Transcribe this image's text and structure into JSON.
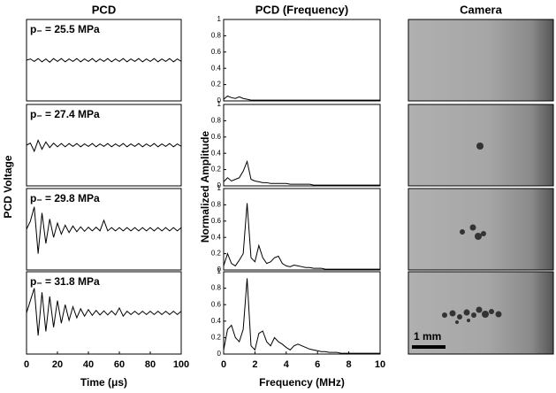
{
  "chart_data": [
    {
      "type": "line",
      "title": "PCD",
      "y_label": "PCD Voltage",
      "label": "p₋ = 25.5 MPa",
      "color": "#000000",
      "x": [
        0,
        2.5,
        5,
        7.5,
        10,
        12.5,
        15,
        17.5,
        20,
        22.5,
        25,
        27.5,
        30,
        32.5,
        35,
        37.5,
        40,
        42.5,
        45,
        47.5,
        50,
        52.5,
        55,
        57.5,
        60,
        62.5,
        65,
        67.5,
        70,
        72.5,
        75,
        77.5,
        80,
        82.5,
        85,
        87.5,
        90,
        92.5,
        95,
        97.5,
        100
      ],
      "values": [
        0,
        0.03,
        -0.03,
        0.04,
        -0.04,
        0.03,
        -0.05,
        0.04,
        -0.03,
        0.04,
        -0.04,
        0.03,
        -0.03,
        0.04,
        -0.04,
        0.03,
        -0.03,
        0.04,
        -0.04,
        0.03,
        -0.03,
        0.04,
        -0.04,
        0.03,
        -0.03,
        0.04,
        -0.04,
        0.03,
        -0.03,
        0.04,
        -0.04,
        0.03,
        -0.03,
        0.04,
        -0.04,
        0.03,
        -0.03,
        0.04,
        -0.04,
        0.03,
        -0.03
      ],
      "xlim": [
        0,
        100
      ],
      "ylim": [
        -1,
        1
      ]
    },
    {
      "type": "line",
      "label": "p₋ = 27.4 MPa",
      "color": "#000000",
      "x": [
        0,
        2.5,
        5,
        7.5,
        10,
        12.5,
        15,
        17.5,
        20,
        22.5,
        25,
        27.5,
        30,
        32.5,
        35,
        37.5,
        40,
        42.5,
        45,
        47.5,
        50,
        52.5,
        55,
        57.5,
        60,
        62.5,
        65,
        67.5,
        70,
        72.5,
        75,
        77.5,
        80,
        82.5,
        85,
        87.5,
        90,
        92.5,
        95,
        97.5,
        100
      ],
      "values": [
        0,
        0.05,
        -0.15,
        0.12,
        -0.1,
        0.08,
        -0.06,
        0.05,
        -0.04,
        0.04,
        -0.04,
        0.04,
        -0.03,
        0.04,
        -0.04,
        0.03,
        -0.03,
        0.04,
        -0.04,
        0.03,
        -0.03,
        0.04,
        -0.04,
        0.03,
        -0.03,
        0.04,
        -0.04,
        0.03,
        -0.03,
        0.04,
        -0.04,
        0.03,
        -0.03,
        0.04,
        -0.04,
        0.03,
        -0.03,
        0.04,
        -0.04,
        0.03,
        -0.03
      ],
      "xlim": [
        0,
        100
      ],
      "ylim": [
        -1,
        1
      ]
    },
    {
      "type": "line",
      "label": "p₋ = 29.8 MPa",
      "color": "#000000",
      "x": [
        0,
        2.5,
        5,
        7.5,
        10,
        12.5,
        15,
        17.5,
        20,
        22.5,
        25,
        27.5,
        30,
        32.5,
        35,
        37.5,
        40,
        42.5,
        45,
        47.5,
        50,
        52.5,
        55,
        57.5,
        60,
        62.5,
        65,
        67.5,
        70,
        72.5,
        75,
        77.5,
        80,
        82.5,
        85,
        87.5,
        90,
        92.5,
        95,
        97.5,
        100
      ],
      "values": [
        0,
        0.2,
        0.55,
        -0.6,
        0.4,
        -0.35,
        0.25,
        -0.2,
        0.15,
        -0.12,
        0.1,
        -0.08,
        0.08,
        -0.06,
        0.06,
        -0.05,
        0.05,
        -0.04,
        0.05,
        -0.04,
        0.22,
        -0.04,
        0.04,
        -0.04,
        0.04,
        -0.04,
        0.04,
        -0.04,
        0.04,
        -0.04,
        0.04,
        -0.04,
        0.04,
        -0.04,
        0.04,
        -0.04,
        0.04,
        -0.04,
        0.04,
        -0.04,
        0.04
      ],
      "xlim": [
        0,
        100
      ],
      "ylim": [
        -1,
        1
      ]
    },
    {
      "type": "line",
      "label": "p₋ = 31.8 MPa",
      "x_label": "Time (μs)",
      "color": "#000000",
      "x": [
        0,
        2.5,
        5,
        7.5,
        10,
        12.5,
        15,
        17.5,
        20,
        22.5,
        25,
        27.5,
        30,
        32.5,
        35,
        37.5,
        40,
        42.5,
        45,
        47.5,
        50,
        52.5,
        55,
        57.5,
        60,
        62.5,
        65,
        67.5,
        70,
        72.5,
        75,
        77.5,
        80,
        82.5,
        85,
        87.5,
        90,
        92.5,
        95,
        97.5,
        100
      ],
      "values": [
        0,
        0.3,
        0.6,
        -0.55,
        0.5,
        -0.45,
        0.4,
        -0.35,
        0.3,
        -0.25,
        0.2,
        -0.18,
        0.15,
        -0.12,
        0.1,
        -0.08,
        0.08,
        -0.06,
        0.06,
        -0.05,
        0.05,
        -0.05,
        0.05,
        -0.05,
        0.12,
        -0.08,
        0.04,
        -0.04,
        0.04,
        -0.04,
        0.04,
        -0.04,
        0.04,
        -0.04,
        0.04,
        -0.04,
        0.04,
        -0.04,
        0.04,
        -0.04,
        0.04
      ],
      "xlim": [
        0,
        100
      ],
      "ylim": [
        -1,
        1
      ],
      "xticks": [
        0,
        20,
        40,
        60,
        80,
        100
      ]
    },
    {
      "type": "line",
      "title": "PCD (Frequency)",
      "y_label": "Normalized Amplitude",
      "color": "#000000",
      "x": [
        0,
        0.25,
        0.5,
        0.75,
        1,
        1.25,
        1.5,
        1.75,
        2,
        2.25,
        2.5,
        2.75,
        3,
        3.25,
        3.5,
        3.75,
        4,
        4.25,
        4.5,
        4.75,
        5,
        5.25,
        5.5,
        5.75,
        6,
        6.25,
        6.5,
        6.75,
        7,
        7.25,
        7.5,
        7.75,
        8,
        8.25,
        8.5,
        8.75,
        9,
        9.25,
        9.5,
        9.75,
        10
      ],
      "values": [
        0.02,
        0.06,
        0.04,
        0.03,
        0.05,
        0.03,
        0.02,
        0.01,
        0.01,
        0.01,
        0.01,
        0.01,
        0.01,
        0.01,
        0.01,
        0.01,
        0.01,
        0.01,
        0.01,
        0.01,
        0.01,
        0.01,
        0.01,
        0.01,
        0.01,
        0.01,
        0.01,
        0.01,
        0.01,
        0.01,
        0.01,
        0.01,
        0.01,
        0.01,
        0.01,
        0.01,
        0.01,
        0.01,
        0.01,
        0.01,
        0.01
      ],
      "xlim": [
        0,
        10
      ],
      "ylim": [
        0,
        1
      ],
      "yticks": [
        0,
        0.2,
        0.4,
        0.6,
        0.8,
        1
      ]
    },
    {
      "type": "line",
      "color": "#000000",
      "x": [
        0,
        0.25,
        0.5,
        0.75,
        1,
        1.25,
        1.5,
        1.75,
        2,
        2.25,
        2.5,
        2.75,
        3,
        3.25,
        3.5,
        3.75,
        4,
        4.25,
        4.5,
        4.75,
        5,
        5.25,
        5.5,
        5.75,
        6,
        6.25,
        6.5,
        6.75,
        7,
        7.25,
        7.5,
        7.75,
        8,
        8.25,
        8.5,
        8.75,
        9,
        9.25,
        9.5,
        9.75,
        10
      ],
      "values": [
        0.05,
        0.1,
        0.06,
        0.08,
        0.1,
        0.18,
        0.3,
        0.08,
        0.06,
        0.05,
        0.04,
        0.04,
        0.03,
        0.03,
        0.03,
        0.03,
        0.03,
        0.02,
        0.02,
        0.02,
        0.02,
        0.02,
        0.02,
        0.01,
        0.01,
        0.01,
        0.01,
        0.01,
        0.01,
        0.01,
        0.01,
        0.01,
        0.01,
        0.01,
        0.01,
        0.01,
        0.01,
        0.01,
        0.01,
        0.01,
        0.01
      ],
      "xlim": [
        0,
        10
      ],
      "ylim": [
        0,
        1
      ],
      "yticks": [
        0,
        0.2,
        0.4,
        0.6,
        0.8,
        1
      ]
    },
    {
      "type": "line",
      "color": "#000000",
      "x": [
        0,
        0.25,
        0.5,
        0.75,
        1,
        1.25,
        1.5,
        1.75,
        2,
        2.25,
        2.5,
        2.75,
        3,
        3.25,
        3.5,
        3.75,
        4,
        4.25,
        4.5,
        4.75,
        5,
        5.25,
        5.5,
        5.75,
        6,
        6.25,
        6.5,
        6.75,
        7,
        7.25,
        7.5,
        7.75,
        8,
        8.25,
        8.5,
        8.75,
        9,
        9.25,
        9.5,
        9.75,
        10
      ],
      "values": [
        0.05,
        0.2,
        0.08,
        0.05,
        0.12,
        0.2,
        0.82,
        0.15,
        0.1,
        0.3,
        0.15,
        0.08,
        0.1,
        0.15,
        0.17,
        0.08,
        0.05,
        0.04,
        0.06,
        0.05,
        0.04,
        0.03,
        0.03,
        0.02,
        0.02,
        0.02,
        0.01,
        0.01,
        0.01,
        0.01,
        0.01,
        0.01,
        0.01,
        0.01,
        0.01,
        0.01,
        0.01,
        0.01,
        0.01,
        0.01,
        0.01
      ],
      "xlim": [
        0,
        10
      ],
      "ylim": [
        0,
        1
      ],
      "yticks": [
        0,
        0.2,
        0.4,
        0.6,
        0.8,
        1
      ]
    },
    {
      "type": "line",
      "x_label": "Frequency (MHz)",
      "color": "#000000",
      "x": [
        0,
        0.25,
        0.5,
        0.75,
        1,
        1.25,
        1.5,
        1.75,
        2,
        2.25,
        2.5,
        2.75,
        3,
        3.25,
        3.5,
        3.75,
        4,
        4.25,
        4.5,
        4.75,
        5,
        5.25,
        5.5,
        5.75,
        6,
        6.25,
        6.5,
        6.75,
        7,
        7.25,
        7.5,
        7.75,
        8,
        8.25,
        8.5,
        8.75,
        9,
        9.25,
        9.5,
        9.75,
        10
      ],
      "values": [
        0.05,
        0.3,
        0.35,
        0.2,
        0.15,
        0.3,
        0.92,
        0.1,
        0.05,
        0.25,
        0.28,
        0.15,
        0.1,
        0.2,
        0.15,
        0.12,
        0.08,
        0.05,
        0.1,
        0.12,
        0.1,
        0.08,
        0.06,
        0.05,
        0.04,
        0.03,
        0.03,
        0.02,
        0.02,
        0.02,
        0.01,
        0.01,
        0.01,
        0.01,
        0.01,
        0.01,
        0.01,
        0.01,
        0.01,
        0.01,
        0.01
      ],
      "xlim": [
        0,
        10
      ],
      "ylim": [
        0,
        1
      ],
      "yticks": [
        0,
        0.2,
        0.4,
        0.6,
        0.8,
        1
      ],
      "xticks": [
        0,
        2,
        4,
        6,
        8,
        10
      ]
    }
  ],
  "camera": {
    "title": "Camera",
    "scale_bar": "1 mm"
  }
}
